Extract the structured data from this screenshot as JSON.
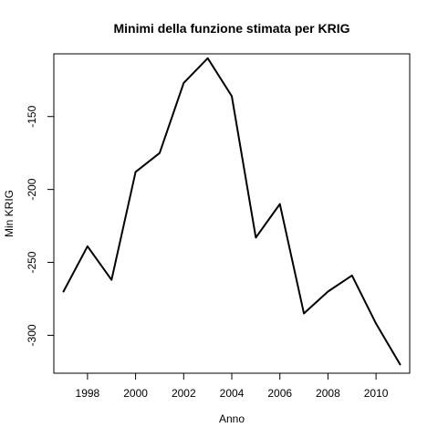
{
  "chart_data": {
    "type": "line",
    "title": "Minimi della funzione stimata per KRIG",
    "xlabel": "Anno",
    "ylabel": "Min KRIG",
    "xlim": [
      1996.6,
      2011.4
    ],
    "ylim": [
      -326,
      -107
    ],
    "x_ticks": [
      1998,
      2000,
      2002,
      2004,
      2006,
      2008,
      2010
    ],
    "y_ticks": [
      -300,
      -250,
      -200,
      -150
    ],
    "grid": false,
    "series": [
      {
        "x": [
          1997,
          1998,
          1999,
          2000,
          2001,
          2002,
          2003,
          2004,
          2005,
          2006,
          2007,
          2008,
          2009,
          2010,
          2011
        ],
        "values": [
          -270,
          -239,
          -262,
          -188,
          -175,
          -127,
          -110,
          -136,
          -233,
          -210,
          -285,
          -270,
          -259,
          -292,
          -320
        ],
        "color": "#000000"
      }
    ]
  }
}
